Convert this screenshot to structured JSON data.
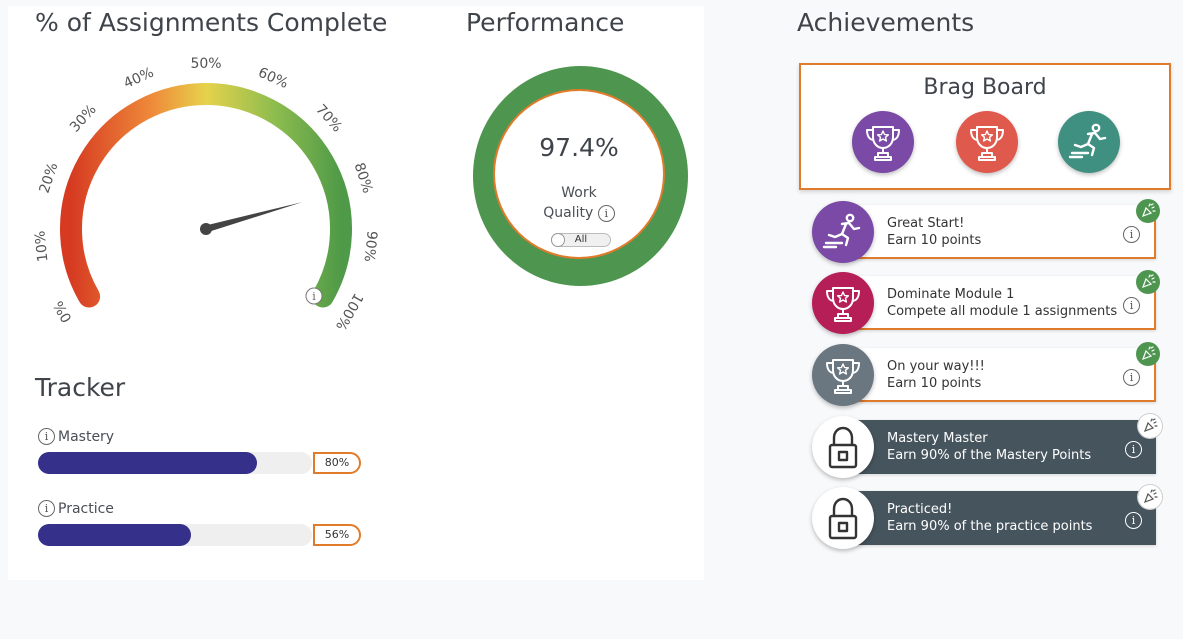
{
  "assignments": {
    "title": "% of Assignments Complete",
    "ticks": [
      "0%",
      "10%",
      "20%",
      "30%",
      "40%",
      "50%",
      "60%",
      "70%",
      "80%",
      "90%",
      "100%"
    ],
    "percent_complete": 81
  },
  "performance": {
    "title": "Performance",
    "value": "97.4%",
    "label_line1": "Work",
    "label_line2": "Quality",
    "toggle_label": "All",
    "ring_color": "#4e9650"
  },
  "tracker": {
    "title": "Tracker",
    "items": [
      {
        "label": "Mastery",
        "percent_label": "80%",
        "percent": 80
      },
      {
        "label": "Practice",
        "percent_label": "56%",
        "percent": 56
      }
    ]
  },
  "achievements": {
    "title": "Achievements",
    "brag_board": {
      "title": "Brag Board",
      "badges": [
        {
          "icon": "trophy-icon",
          "color": "#7a4aa6"
        },
        {
          "icon": "trophy-icon",
          "color": "#e0594d"
        },
        {
          "icon": "runner-icon",
          "color": "#3f9080"
        }
      ]
    },
    "items": [
      {
        "title": "Great Start!",
        "description": "Earn 10 points",
        "icon": "runner-icon",
        "color": "#7a4aa6",
        "locked": false
      },
      {
        "title": "Dominate Module 1",
        "description": "Compete all module 1 assignments",
        "icon": "trophy-icon",
        "color": "#b51e57",
        "locked": false
      },
      {
        "title": "On your way!!!",
        "description": "Earn 10 points",
        "icon": "trophy-icon",
        "color": "#6a7680",
        "locked": false
      },
      {
        "title": "Mastery Master",
        "description": "Earn 90% of the Mastery Points",
        "icon": "lock-icon",
        "color": "#ffffff",
        "locked": true
      },
      {
        "title": "Practiced!",
        "description": "Earn 90% of the practice points",
        "icon": "lock-icon",
        "color": "#ffffff",
        "locked": true
      }
    ]
  },
  "colors": {
    "accent_orange": "#e07b2b",
    "progress_fill": "#35308a",
    "locked_card": "#46545d",
    "earned_corner": "#4e9650"
  }
}
